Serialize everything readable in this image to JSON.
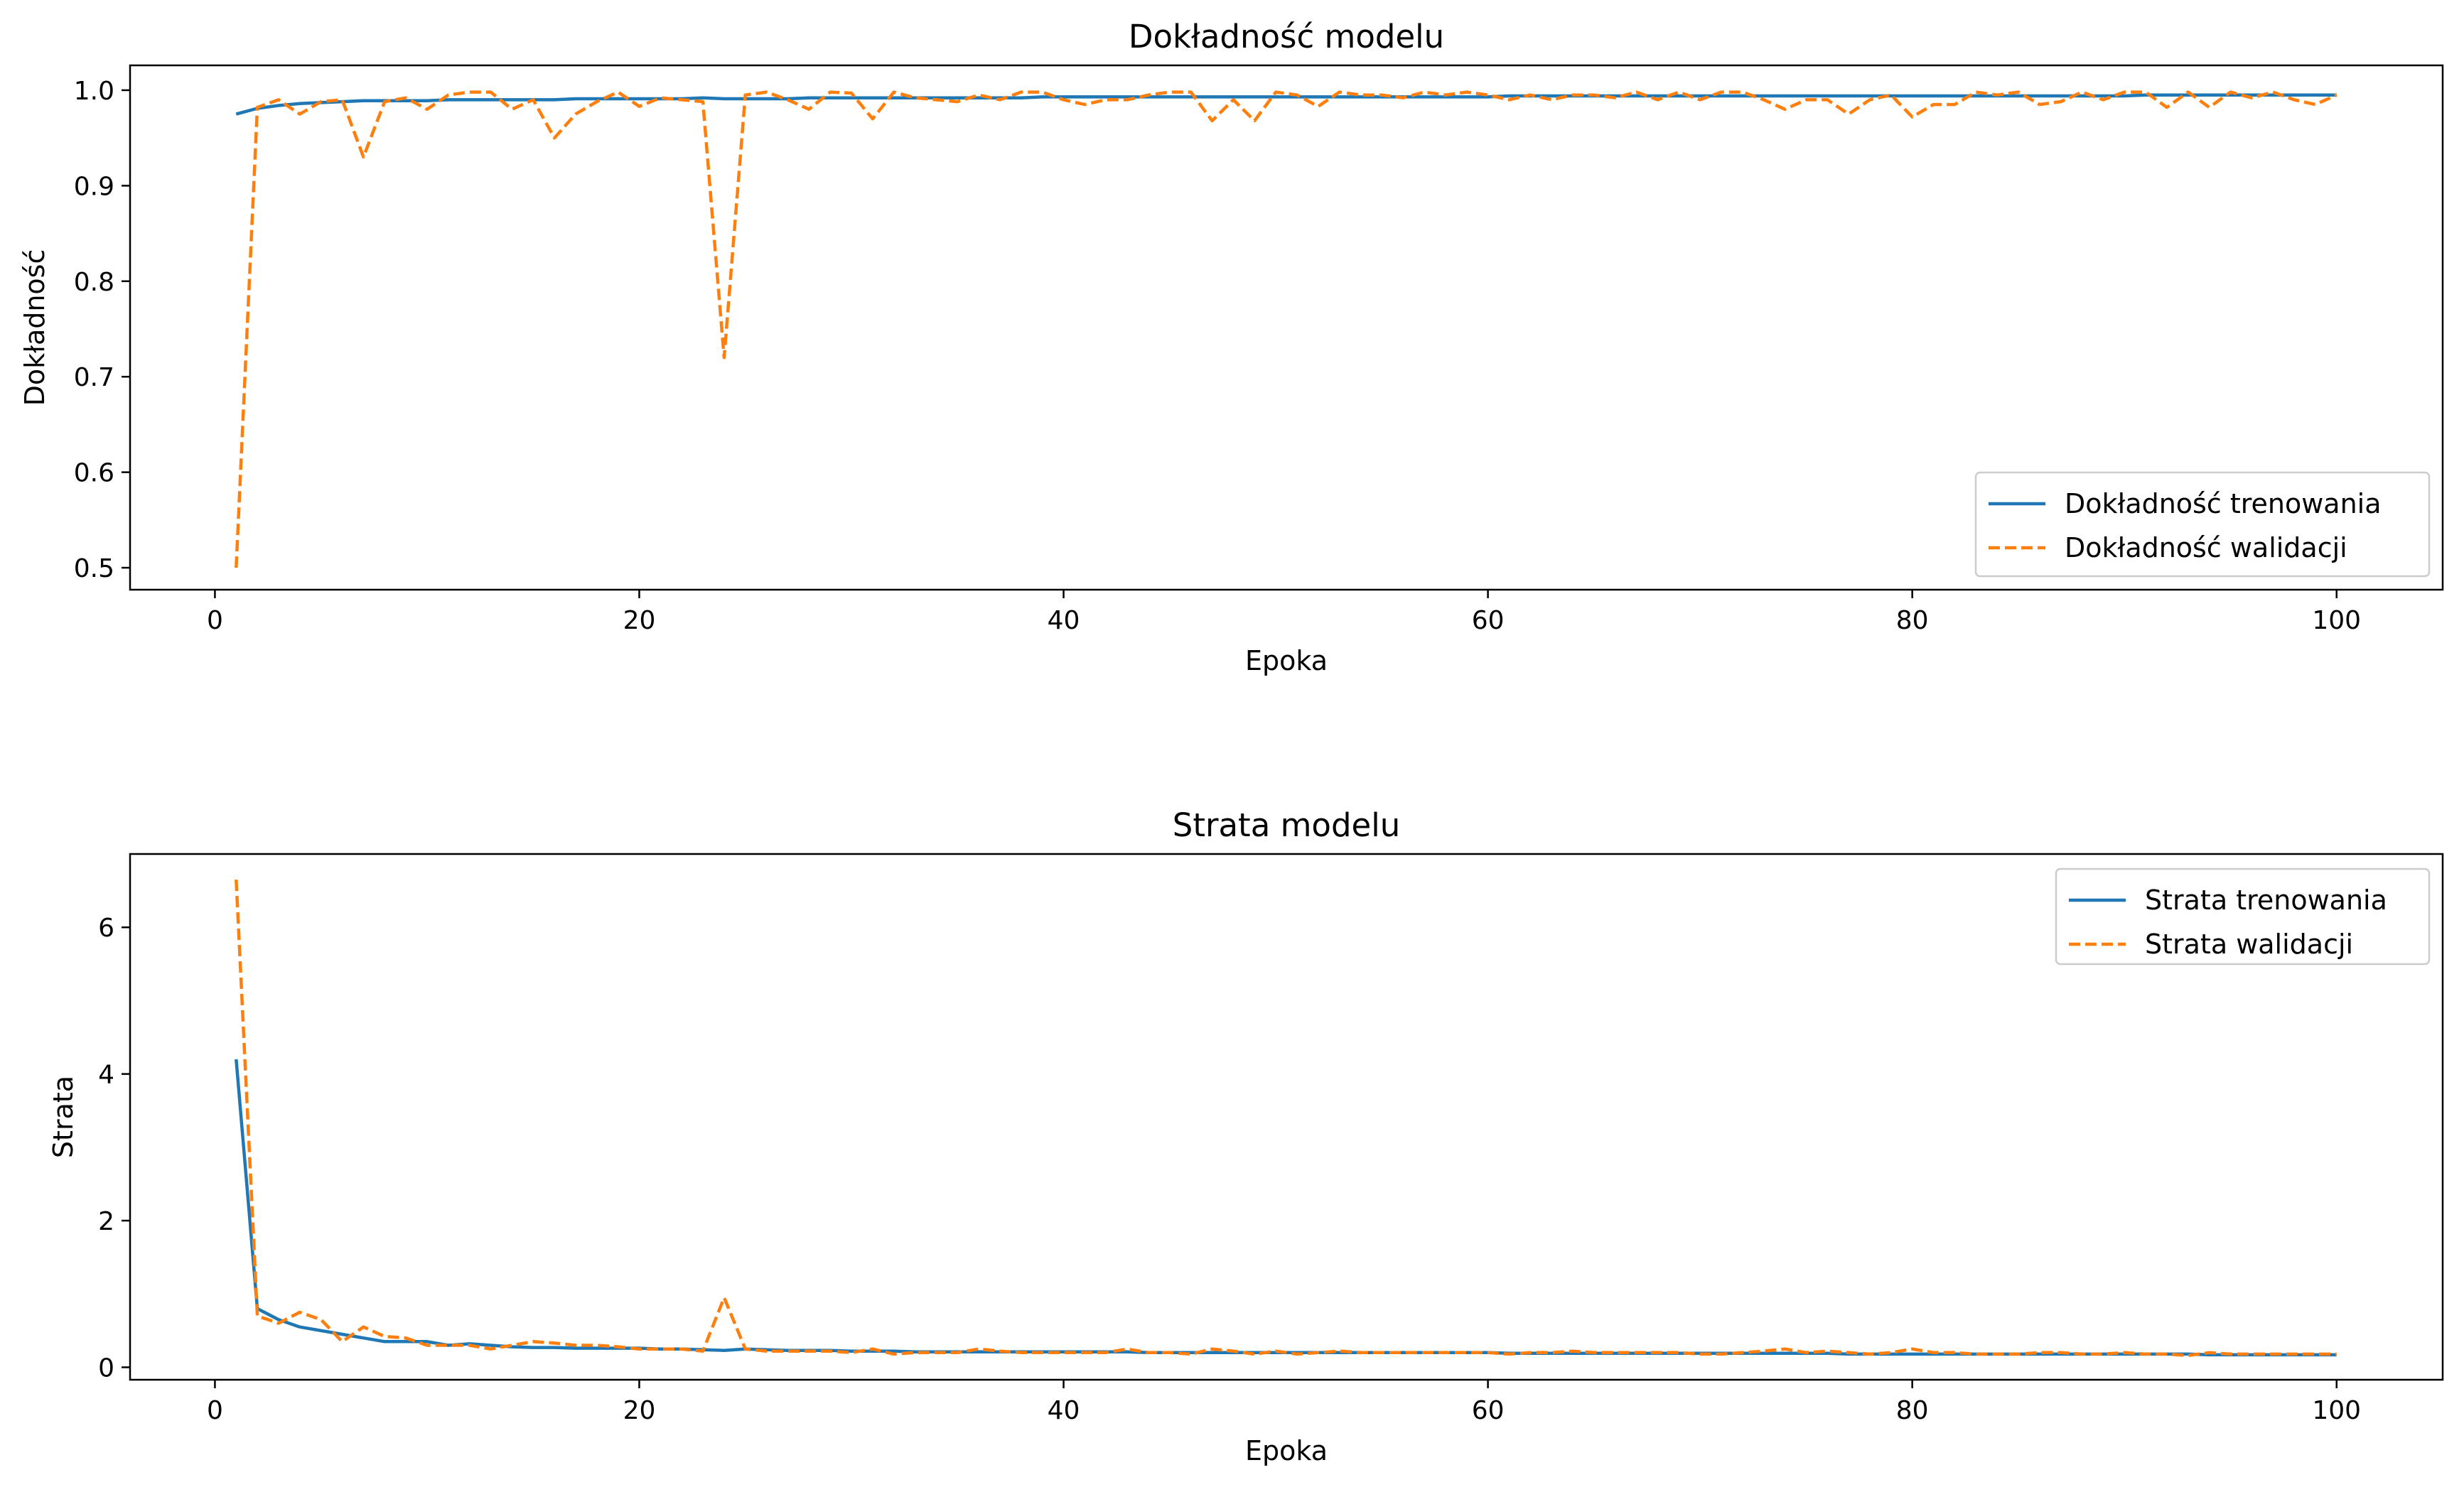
{
  "colors": {
    "train": "#1f77b4",
    "val": "#ff7f0e",
    "frame": "#000000",
    "legend_border": "#cccccc"
  },
  "chart_data": [
    {
      "type": "line",
      "title": "Dokładność modelu",
      "xlabel": "Epoka",
      "ylabel": "Dokładność",
      "xlim": [
        -4,
        105
      ],
      "ylim": [
        0.477,
        1.026
      ],
      "xticks": [
        0,
        20,
        40,
        60,
        80,
        100
      ],
      "xtick_labels": [
        "0",
        "20",
        "40",
        "60",
        "80",
        "100"
      ],
      "yticks": [
        0.5,
        0.6,
        0.7,
        0.8,
        0.9,
        1.0
      ],
      "ytick_labels": [
        "0.5",
        "0.6",
        "0.7",
        "0.8",
        "0.9",
        "1.0"
      ],
      "grid": false,
      "legend_position": "lower-right",
      "series": [
        {
          "name": "Dokładność trenowania",
          "style": "solid",
          "x": [
            1,
            2,
            3,
            4,
            5,
            6,
            7,
            8,
            9,
            10,
            11,
            12,
            13,
            14,
            15,
            16,
            17,
            18,
            19,
            20,
            21,
            22,
            23,
            24,
            25,
            26,
            27,
            28,
            29,
            30,
            31,
            32,
            33,
            34,
            35,
            36,
            37,
            38,
            39,
            40,
            41,
            42,
            43,
            44,
            45,
            46,
            47,
            48,
            49,
            50,
            51,
            52,
            53,
            54,
            55,
            56,
            57,
            58,
            59,
            60,
            61,
            62,
            63,
            64,
            65,
            66,
            67,
            68,
            69,
            70,
            71,
            72,
            73,
            74,
            75,
            76,
            77,
            78,
            79,
            80,
            81,
            82,
            83,
            84,
            85,
            86,
            87,
            88,
            89,
            90,
            91,
            92,
            93,
            94,
            95,
            96,
            97,
            98,
            99,
            100
          ],
          "values": [
            0.975,
            0.981,
            0.984,
            0.986,
            0.987,
            0.988,
            0.989,
            0.989,
            0.989,
            0.989,
            0.99,
            0.99,
            0.99,
            0.99,
            0.99,
            0.99,
            0.991,
            0.991,
            0.991,
            0.991,
            0.991,
            0.991,
            0.992,
            0.991,
            0.991,
            0.991,
            0.991,
            0.992,
            0.992,
            0.992,
            0.992,
            0.992,
            0.992,
            0.992,
            0.992,
            0.992,
            0.992,
            0.992,
            0.993,
            0.993,
            0.993,
            0.993,
            0.993,
            0.993,
            0.993,
            0.993,
            0.993,
            0.993,
            0.993,
            0.993,
            0.993,
            0.993,
            0.993,
            0.993,
            0.993,
            0.993,
            0.993,
            0.993,
            0.993,
            0.993,
            0.994,
            0.994,
            0.994,
            0.994,
            0.994,
            0.994,
            0.994,
            0.994,
            0.994,
            0.994,
            0.994,
            0.994,
            0.994,
            0.994,
            0.994,
            0.994,
            0.994,
            0.994,
            0.994,
            0.994,
            0.994,
            0.994,
            0.994,
            0.994,
            0.994,
            0.994,
            0.994,
            0.994,
            0.994,
            0.994,
            0.995,
            0.995,
            0.995,
            0.995,
            0.995,
            0.995,
            0.995,
            0.995,
            0.995,
            0.995
          ]
        },
        {
          "name": "Dokładność walidacji",
          "style": "dashed",
          "x": [
            1,
            2,
            3,
            4,
            5,
            6,
            7,
            8,
            9,
            10,
            11,
            12,
            13,
            14,
            15,
            16,
            17,
            18,
            19,
            20,
            21,
            22,
            23,
            24,
            25,
            26,
            27,
            28,
            29,
            30,
            31,
            32,
            33,
            34,
            35,
            36,
            37,
            38,
            39,
            40,
            41,
            42,
            43,
            44,
            45,
            46,
            47,
            48,
            49,
            50,
            51,
            52,
            53,
            54,
            55,
            56,
            57,
            58,
            59,
            60,
            61,
            62,
            63,
            64,
            65,
            66,
            67,
            68,
            69,
            70,
            71,
            72,
            73,
            74,
            75,
            76,
            77,
            78,
            79,
            80,
            81,
            82,
            83,
            84,
            85,
            86,
            87,
            88,
            89,
            90,
            91,
            92,
            93,
            94,
            95,
            96,
            97,
            98,
            99,
            100
          ],
          "values": [
            0.5,
            0.982,
            0.99,
            0.975,
            0.988,
            0.99,
            0.93,
            0.988,
            0.992,
            0.98,
            0.995,
            0.998,
            0.998,
            0.98,
            0.99,
            0.95,
            0.975,
            0.988,
            0.998,
            0.983,
            0.992,
            0.99,
            0.988,
            0.72,
            0.995,
            0.998,
            0.99,
            0.98,
            0.998,
            0.997,
            0.97,
            0.998,
            0.992,
            0.99,
            0.988,
            0.995,
            0.99,
            0.998,
            0.998,
            0.99,
            0.985,
            0.99,
            0.99,
            0.995,
            0.998,
            0.998,
            0.968,
            0.99,
            0.968,
            0.998,
            0.995,
            0.983,
            0.998,
            0.995,
            0.995,
            0.992,
            0.998,
            0.995,
            0.998,
            0.995,
            0.99,
            0.995,
            0.99,
            0.995,
            0.995,
            0.992,
            0.998,
            0.99,
            0.998,
            0.99,
            0.998,
            0.998,
            0.99,
            0.98,
            0.99,
            0.99,
            0.975,
            0.99,
            0.995,
            0.972,
            0.985,
            0.985,
            0.998,
            0.995,
            0.998,
            0.985,
            0.988,
            0.998,
            0.99,
            0.998,
            0.998,
            0.982,
            0.998,
            0.982,
            0.998,
            0.992,
            0.998,
            0.99,
            0.985,
            0.995
          ]
        }
      ]
    },
    {
      "type": "line",
      "title": "Strata modelu",
      "xlabel": "Epoka",
      "ylabel": "Strata",
      "xlim": [
        -4,
        105
      ],
      "ylim": [
        -0.17,
        7.0
      ],
      "xticks": [
        0,
        20,
        40,
        60,
        80,
        100
      ],
      "xtick_labels": [
        "0",
        "20",
        "40",
        "60",
        "80",
        "100"
      ],
      "yticks": [
        0,
        2,
        4,
        6
      ],
      "ytick_labels": [
        "0",
        "2",
        "4",
        "6"
      ],
      "grid": false,
      "legend_position": "upper-right",
      "series": [
        {
          "name": "Strata trenowania",
          "style": "solid",
          "x": [
            1,
            2,
            3,
            4,
            5,
            6,
            7,
            8,
            9,
            10,
            11,
            12,
            13,
            14,
            15,
            16,
            17,
            18,
            19,
            20,
            21,
            22,
            23,
            24,
            25,
            26,
            27,
            28,
            29,
            30,
            31,
            32,
            33,
            34,
            35,
            36,
            37,
            38,
            39,
            40,
            41,
            42,
            43,
            44,
            45,
            46,
            47,
            48,
            49,
            50,
            51,
            52,
            53,
            54,
            55,
            56,
            57,
            58,
            59,
            60,
            61,
            62,
            63,
            64,
            65,
            66,
            67,
            68,
            69,
            70,
            71,
            72,
            73,
            74,
            75,
            76,
            77,
            78,
            79,
            80,
            81,
            82,
            83,
            84,
            85,
            86,
            87,
            88,
            89,
            90,
            91,
            92,
            93,
            94,
            95,
            96,
            97,
            98,
            99,
            100
          ],
          "values": [
            4.2,
            0.8,
            0.65,
            0.55,
            0.5,
            0.45,
            0.4,
            0.35,
            0.35,
            0.35,
            0.3,
            0.32,
            0.3,
            0.28,
            0.27,
            0.27,
            0.26,
            0.26,
            0.26,
            0.26,
            0.25,
            0.25,
            0.24,
            0.23,
            0.25,
            0.24,
            0.23,
            0.23,
            0.23,
            0.22,
            0.22,
            0.22,
            0.21,
            0.21,
            0.21,
            0.21,
            0.21,
            0.21,
            0.21,
            0.21,
            0.21,
            0.21,
            0.21,
            0.2,
            0.2,
            0.2,
            0.2,
            0.2,
            0.2,
            0.2,
            0.2,
            0.2,
            0.2,
            0.2,
            0.2,
            0.2,
            0.2,
            0.2,
            0.2,
            0.2,
            0.19,
            0.19,
            0.19,
            0.19,
            0.19,
            0.19,
            0.19,
            0.19,
            0.19,
            0.19,
            0.19,
            0.19,
            0.19,
            0.19,
            0.19,
            0.19,
            0.18,
            0.18,
            0.18,
            0.18,
            0.18,
            0.18,
            0.18,
            0.18,
            0.18,
            0.18,
            0.18,
            0.18,
            0.18,
            0.18,
            0.18,
            0.18,
            0.18,
            0.17,
            0.17,
            0.17,
            0.17,
            0.17,
            0.17,
            0.17
          ]
        },
        {
          "name": "Strata walidacji",
          "style": "dashed",
          "x": [
            1,
            2,
            3,
            4,
            5,
            6,
            7,
            8,
            9,
            10,
            11,
            12,
            13,
            14,
            15,
            16,
            17,
            18,
            19,
            20,
            21,
            22,
            23,
            24,
            25,
            26,
            27,
            28,
            29,
            30,
            31,
            32,
            33,
            34,
            35,
            36,
            37,
            38,
            39,
            40,
            41,
            42,
            43,
            44,
            45,
            46,
            47,
            48,
            49,
            50,
            51,
            52,
            53,
            54,
            55,
            56,
            57,
            58,
            59,
            60,
            61,
            62,
            63,
            64,
            65,
            66,
            67,
            68,
            69,
            70,
            71,
            72,
            73,
            74,
            75,
            76,
            77,
            78,
            79,
            80,
            81,
            82,
            83,
            84,
            85,
            86,
            87,
            88,
            89,
            90,
            91,
            92,
            93,
            94,
            95,
            96,
            97,
            98,
            99,
            100
          ],
          "values": [
            6.65,
            0.7,
            0.6,
            0.75,
            0.65,
            0.35,
            0.55,
            0.42,
            0.4,
            0.3,
            0.3,
            0.3,
            0.25,
            0.3,
            0.35,
            0.33,
            0.3,
            0.3,
            0.28,
            0.25,
            0.25,
            0.25,
            0.22,
            0.95,
            0.25,
            0.22,
            0.22,
            0.22,
            0.22,
            0.2,
            0.25,
            0.18,
            0.2,
            0.2,
            0.2,
            0.25,
            0.22,
            0.2,
            0.2,
            0.2,
            0.2,
            0.2,
            0.25,
            0.2,
            0.2,
            0.18,
            0.25,
            0.22,
            0.18,
            0.22,
            0.18,
            0.2,
            0.22,
            0.2,
            0.2,
            0.2,
            0.2,
            0.2,
            0.2,
            0.2,
            0.18,
            0.2,
            0.2,
            0.22,
            0.2,
            0.2,
            0.2,
            0.2,
            0.2,
            0.18,
            0.18,
            0.2,
            0.22,
            0.25,
            0.2,
            0.22,
            0.2,
            0.18,
            0.2,
            0.25,
            0.2,
            0.2,
            0.18,
            0.18,
            0.18,
            0.2,
            0.2,
            0.18,
            0.18,
            0.2,
            0.18,
            0.18,
            0.16,
            0.2,
            0.18,
            0.18,
            0.18,
            0.18,
            0.18,
            0.18
          ]
        }
      ]
    }
  ]
}
